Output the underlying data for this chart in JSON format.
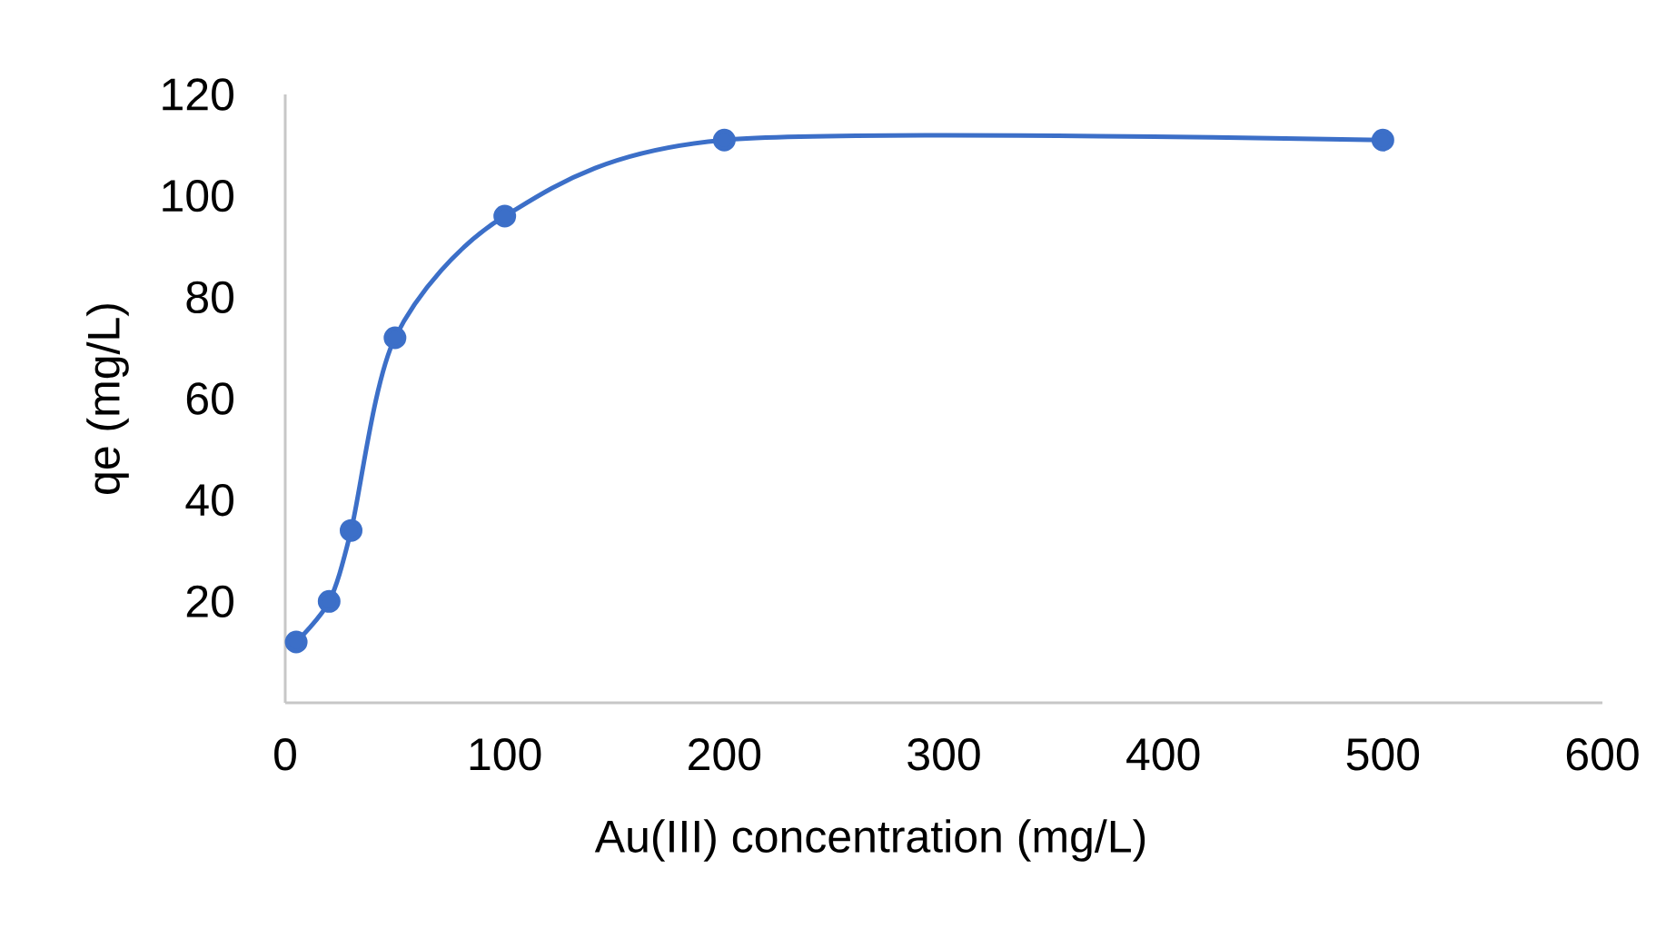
{
  "chart_data": {
    "type": "line",
    "xlabel": "Au(III) concentration (mg/L)",
    "ylabel": "qe (mg/L)",
    "x": [
      5,
      20,
      30,
      50,
      100,
      200,
      500
    ],
    "series": [
      {
        "color": "#3c6fc8",
        "values": [
          12,
          20,
          34,
          72,
          96,
          111,
          111
        ]
      }
    ],
    "xlim": [
      0,
      600
    ],
    "xticks": [
      0,
      100,
      200,
      300,
      400,
      500,
      600
    ],
    "ylim": [
      0,
      120
    ],
    "yticks": [
      20,
      40,
      60,
      80,
      100,
      120
    ],
    "marker": "circle",
    "line_style": "solid"
  }
}
